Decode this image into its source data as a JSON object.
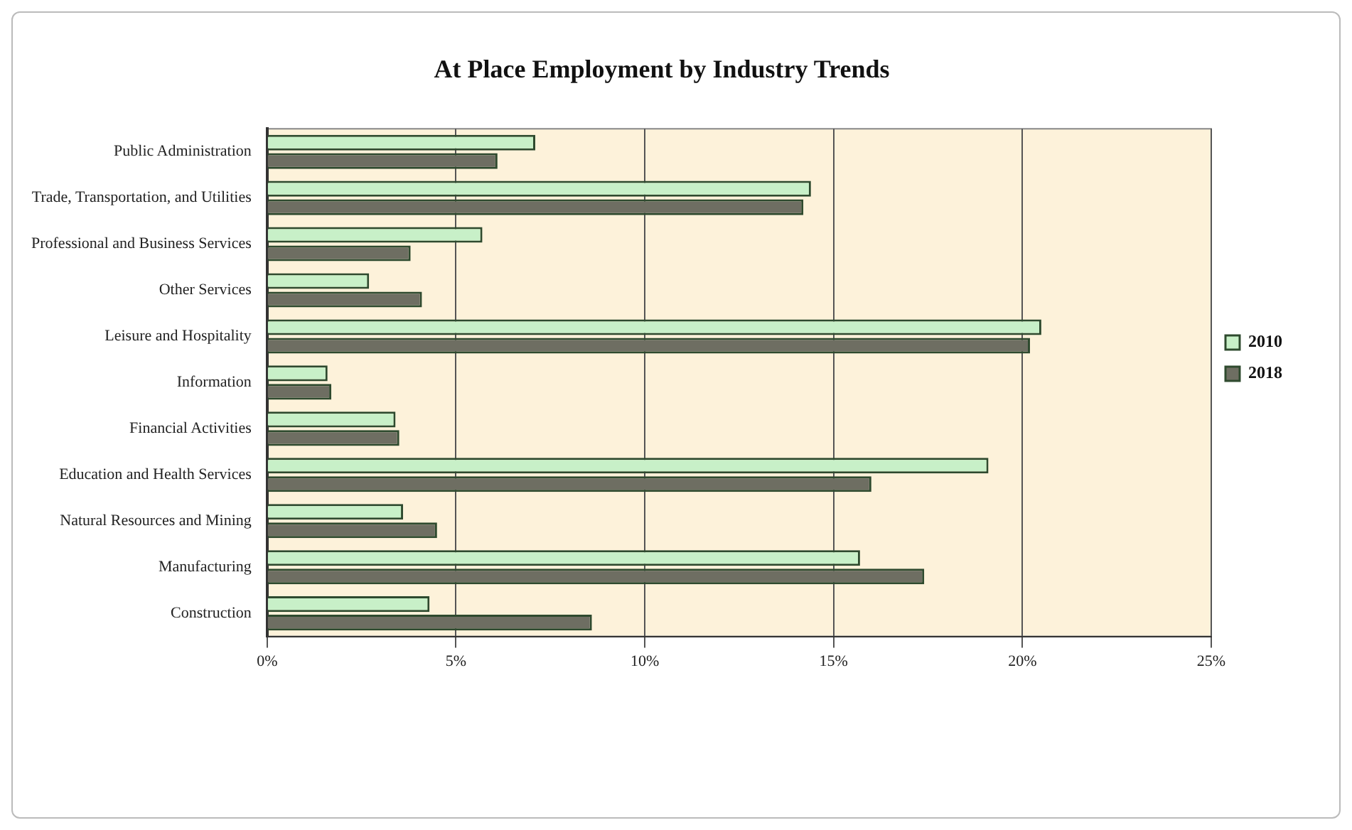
{
  "chart_data": {
    "type": "bar",
    "orientation": "horizontal",
    "title": "At Place Employment by Industry Trends",
    "categories": [
      "Public Administration",
      "Trade, Transportation, and Utilities",
      "Professional and Business Services",
      "Other Services",
      "Leisure and Hospitality",
      "Information",
      "Financial Activities",
      "Education and Health Services",
      "Natural Resources and Mining",
      "Manufacturing",
      "Construction"
    ],
    "series": [
      {
        "name": "2010",
        "color": "#c8f0c8",
        "values": [
          7.1,
          14.4,
          5.7,
          2.7,
          20.5,
          1.6,
          3.4,
          19.1,
          3.6,
          15.7,
          4.3
        ]
      },
      {
        "name": "2018",
        "color": "#6e6e62",
        "values": [
          6.1,
          14.2,
          3.8,
          4.1,
          20.2,
          1.7,
          3.5,
          16.0,
          4.5,
          17.4,
          8.6
        ]
      }
    ],
    "xlim": [
      0,
      25
    ],
    "xticks": [
      {
        "value": 0,
        "label": "0%"
      },
      {
        "value": 5,
        "label": "5%"
      },
      {
        "value": 10,
        "label": "10%"
      },
      {
        "value": 15,
        "label": "15%"
      },
      {
        "value": 20,
        "label": "20%"
      },
      {
        "value": 25,
        "label": "25%"
      }
    ],
    "grid": "x",
    "legend": "right"
  }
}
